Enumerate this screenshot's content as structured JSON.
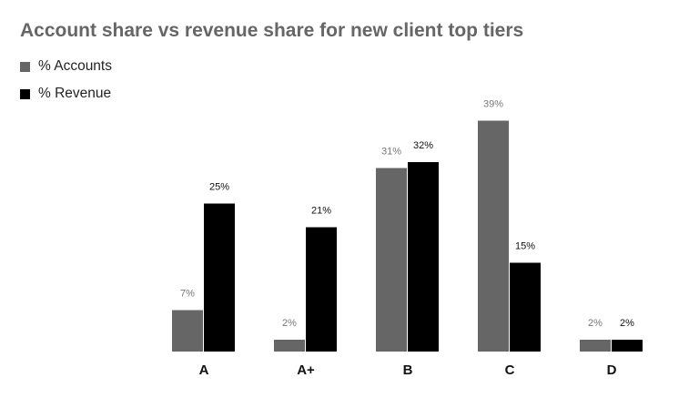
{
  "chart_data": {
    "type": "bar",
    "title": "Account share vs revenue share for new client top tiers",
    "xlabel": "",
    "ylabel": "",
    "categories": [
      "A",
      "A+",
      "B",
      "C",
      "D"
    ],
    "series": [
      {
        "name": "% Accounts",
        "color": "#666666",
        "values": [
          7,
          2,
          31,
          39,
          2
        ],
        "labels": [
          "7%",
          "2%",
          "31%",
          "39%",
          "2%"
        ]
      },
      {
        "name": "% Revenue",
        "color": "#000000",
        "values": [
          25,
          21,
          32,
          15,
          2
        ],
        "labels": [
          "25%",
          "21%",
          "32%",
          "15%",
          "2%"
        ]
      }
    ],
    "ylim": [
      0,
      40
    ],
    "grid": false,
    "legend": "top-left"
  }
}
